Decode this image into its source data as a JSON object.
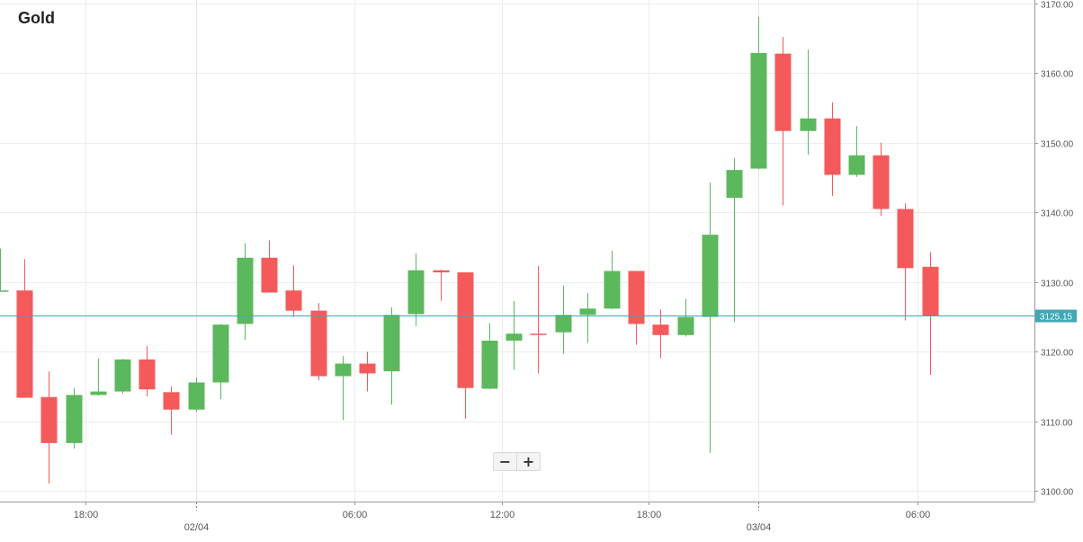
{
  "chart_data": {
    "type": "candlestick",
    "title": "Gold",
    "y_ticks": [
      "3100.00",
      "3110.00",
      "3120.00",
      "3130.00",
      "3140.00",
      "3150.00",
      "3160.00",
      "3170.00"
    ],
    "ylim": [
      3098.5,
      3170.5
    ],
    "x_time_labels": [
      {
        "label": "18:00",
        "index": 3.5
      },
      {
        "label": "06:00",
        "index": 14.5
      },
      {
        "label": "12:00",
        "index": 20.5
      },
      {
        "label": "18:00",
        "index": 26.5
      },
      {
        "label": "06:00",
        "index": 37.5
      }
    ],
    "x_date_labels": [
      {
        "label": "02/04",
        "index": 8
      },
      {
        "label": "03/04",
        "index": 31
      }
    ],
    "current_price": 3125.15,
    "current_price_label": "3125.15",
    "colors": {
      "up": "#5cb85c",
      "down": "#f55a5a",
      "price_line": "#3fa7b5",
      "price_tag": "#3fa7b5",
      "grid": "#ececec"
    },
    "grid": true,
    "candles": [
      {
        "o": 3128.8,
        "h": 3134.8,
        "l": 3128.8,
        "c": 3128.8
      },
      {
        "o": 3128.8,
        "h": 3133.3,
        "l": 3113.4,
        "c": 3113.4
      },
      {
        "o": 3113.5,
        "h": 3117.2,
        "l": 3101.1,
        "c": 3106.9
      },
      {
        "o": 3106.9,
        "h": 3114.8,
        "l": 3106.1,
        "c": 3113.8
      },
      {
        "o": 3113.8,
        "h": 3119.0,
        "l": 3113.7,
        "c": 3114.3
      },
      {
        "o": 3114.3,
        "h": 3119.0,
        "l": 3114.0,
        "c": 3118.9
      },
      {
        "o": 3118.9,
        "h": 3120.8,
        "l": 3113.6,
        "c": 3114.6
      },
      {
        "o": 3114.2,
        "h": 3115.0,
        "l": 3108.1,
        "c": 3111.7
      },
      {
        "o": 3111.7,
        "h": 3116.3,
        "l": 3111.4,
        "c": 3115.6
      },
      {
        "o": 3115.6,
        "h": 3124.0,
        "l": 3113.2,
        "c": 3123.9
      },
      {
        "o": 3124.0,
        "h": 3135.6,
        "l": 3121.7,
        "c": 3133.5
      },
      {
        "o": 3133.5,
        "h": 3136.0,
        "l": 3128.5,
        "c": 3128.5
      },
      {
        "o": 3128.8,
        "h": 3132.4,
        "l": 3125.0,
        "c": 3125.9
      },
      {
        "o": 3125.9,
        "h": 3127.0,
        "l": 3115.9,
        "c": 3116.5
      },
      {
        "o": 3116.5,
        "h": 3119.4,
        "l": 3110.2,
        "c": 3118.3
      },
      {
        "o": 3118.3,
        "h": 3120.0,
        "l": 3114.3,
        "c": 3116.9
      },
      {
        "o": 3117.2,
        "h": 3126.4,
        "l": 3112.4,
        "c": 3125.3
      },
      {
        "o": 3125.4,
        "h": 3134.1,
        "l": 3123.7,
        "c": 3131.7
      },
      {
        "o": 3131.7,
        "h": 3131.8,
        "l": 3127.3,
        "c": 3131.4
      },
      {
        "o": 3131.4,
        "h": 3131.4,
        "l": 3110.4,
        "c": 3114.8
      },
      {
        "o": 3114.7,
        "h": 3124.1,
        "l": 3114.6,
        "c": 3121.6
      },
      {
        "o": 3121.6,
        "h": 3127.3,
        "l": 3117.4,
        "c": 3122.6
      },
      {
        "o": 3122.6,
        "h": 3132.3,
        "l": 3116.9,
        "c": 3122.5
      },
      {
        "o": 3122.8,
        "h": 3129.5,
        "l": 3119.7,
        "c": 3125.3
      },
      {
        "o": 3125.3,
        "h": 3128.4,
        "l": 3121.3,
        "c": 3126.2
      },
      {
        "o": 3126.2,
        "h": 3134.5,
        "l": 3126.1,
        "c": 3131.6
      },
      {
        "o": 3131.6,
        "h": 3131.6,
        "l": 3121.0,
        "c": 3124.0
      },
      {
        "o": 3123.9,
        "h": 3126.1,
        "l": 3119.1,
        "c": 3122.4
      },
      {
        "o": 3122.4,
        "h": 3127.6,
        "l": 3122.2,
        "c": 3125.0
      },
      {
        "o": 3125.0,
        "h": 3144.3,
        "l": 3105.5,
        "c": 3136.8
      },
      {
        "o": 3142.1,
        "h": 3147.8,
        "l": 3124.3,
        "c": 3146.1
      },
      {
        "o": 3146.3,
        "h": 3168.1,
        "l": 3146.2,
        "c": 3162.9
      },
      {
        "o": 3162.8,
        "h": 3165.2,
        "l": 3141.0,
        "c": 3151.7
      },
      {
        "o": 3151.7,
        "h": 3163.4,
        "l": 3148.3,
        "c": 3153.5
      },
      {
        "o": 3153.5,
        "h": 3155.8,
        "l": 3142.4,
        "c": 3145.4
      },
      {
        "o": 3145.4,
        "h": 3152.4,
        "l": 3145.1,
        "c": 3148.2
      },
      {
        "o": 3148.2,
        "h": 3150.0,
        "l": 3139.5,
        "c": 3140.5
      },
      {
        "o": 3140.5,
        "h": 3141.3,
        "l": 3124.5,
        "c": 3132.0
      },
      {
        "o": 3132.2,
        "h": 3134.3,
        "l": 3116.7,
        "c": 3125.2
      }
    ]
  },
  "zoom": {
    "minus": "−",
    "plus": "+"
  }
}
